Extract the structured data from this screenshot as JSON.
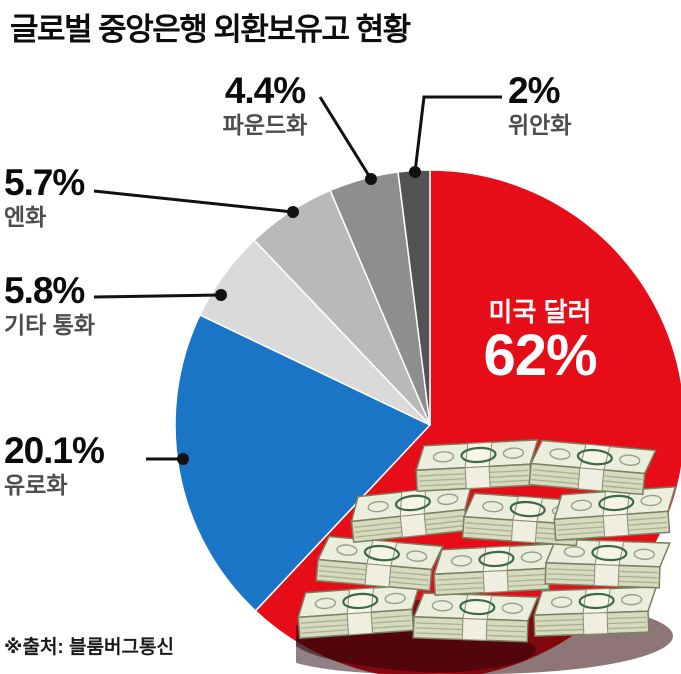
{
  "title": "글로벌 중앙은행 외환보유고 현황",
  "source": "※출처: 블룸버그통신",
  "chart_data": {
    "type": "pie",
    "title": "글로벌 중앙은행 외환보유고 현황",
    "total": 100,
    "unit": "%",
    "start_angle_deg": 0,
    "direction": "clockwise",
    "legend_position": "callout-labels",
    "source": "※출처: 블룸버그통신",
    "slices": [
      {
        "key": "us-dollar",
        "label": "미국 달러",
        "value": 62,
        "display": "62%",
        "color": "#e60d18"
      },
      {
        "key": "euro",
        "label": "유로화",
        "value": 20.1,
        "display": "20.1%",
        "color": "#1b75c6"
      },
      {
        "key": "other",
        "label": "기타 통화",
        "value": 5.8,
        "display": "5.8%",
        "color": "#dadada"
      },
      {
        "key": "yen",
        "label": "엔화",
        "value": 5.7,
        "display": "5.7%",
        "color": "#b9b9b9"
      },
      {
        "key": "pound",
        "label": "파운드화",
        "value": 4.4,
        "display": "4.4%",
        "color": "#8e8e8e"
      },
      {
        "key": "yuan",
        "label": "위안화",
        "value": 2,
        "display": "2%",
        "color": "#525252"
      }
    ]
  }
}
